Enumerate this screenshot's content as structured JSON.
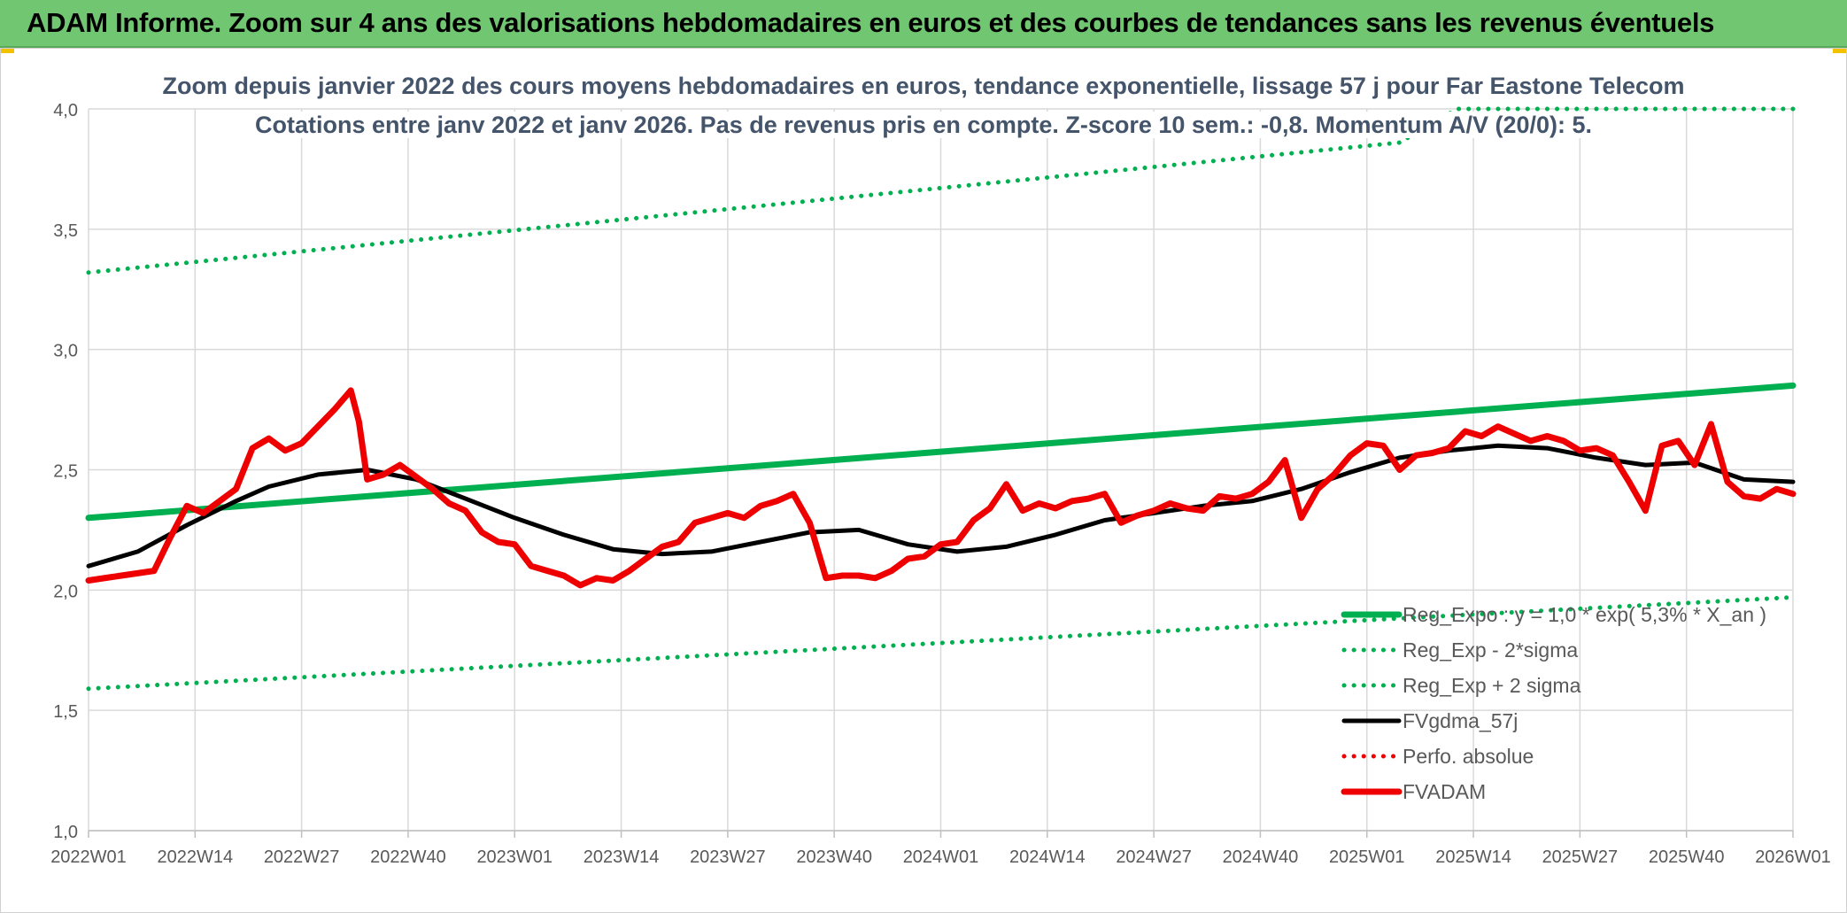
{
  "header": {
    "title": "ADAM Informe. Zoom sur 4 ans des valorisations hebdomadaires en euros et des courbes de tendances sans les revenus éventuels"
  },
  "colors": {
    "banner_bg": "#71c671",
    "regression": "#00b050",
    "gdma": "#000000",
    "fvadam": "#ee0000",
    "perfo": "#ee0000",
    "grid": "#d9d9d9",
    "axis_text": "#595959",
    "subtitle_text": "#44546a"
  },
  "chart_data": {
    "type": "line",
    "title": "Zoom depuis janvier 2022 des cours moyens hebdomadaires en euros, tendance exponentielle, lissage 57 j pour Far Eastone Telecom",
    "subtitle": "Cotations entre janv 2022 et janv 2026. Pas de revenus pris en compte. Z-score 10 sem.: -0,8. Momentum A/V (20/0): 5.",
    "xlabel": "",
    "ylabel": "",
    "ylim": [
      1.0,
      4.0
    ],
    "y_ticks": [
      "1,0",
      "1,5",
      "2,0",
      "2,5",
      "3,0",
      "3,5",
      "4,0"
    ],
    "x_ticks": [
      "2022W01",
      "2022W14",
      "2022W27",
      "2022W40",
      "2023W01",
      "2023W14",
      "2023W27",
      "2023W40",
      "2024W01",
      "2024W14",
      "2024W27",
      "2024W40",
      "2025W01",
      "2025W14",
      "2025W27",
      "2025W40",
      "2026W01"
    ],
    "grid": true,
    "legend_position": "bottom-right",
    "x_week_range": [
      0,
      208
    ],
    "series": [
      {
        "name": "Reg_Expo : y = 1,0 * exp( 5,3% * X_an )",
        "style": "solid-thick",
        "color": "#00b050",
        "x": [
          0,
          208
        ],
        "y": [
          2.3,
          2.85
        ]
      },
      {
        "name": "Reg_Exp - 2*sigma",
        "style": "dotted",
        "color": "#00b050",
        "x": [
          0,
          208
        ],
        "y": [
          1.59,
          1.97
        ]
      },
      {
        "name": "Reg_Exp + 2 sigma",
        "style": "dotted",
        "color": "#00b050",
        "x": [
          0,
          160,
          167,
          208
        ],
        "y": [
          3.32,
          3.86,
          4.0,
          4.0
        ]
      },
      {
        "name": "FVgdma_57j",
        "style": "solid",
        "color": "#000000",
        "x": [
          0,
          6,
          12,
          18,
          22,
          28,
          34,
          40,
          46,
          52,
          58,
          64,
          70,
          76,
          82,
          88,
          94,
          100,
          106,
          112,
          118,
          124,
          130,
          136,
          142,
          148,
          154,
          160,
          166,
          172,
          178,
          184,
          190,
          196,
          202,
          208
        ],
        "y": [
          2.1,
          2.16,
          2.27,
          2.37,
          2.43,
          2.48,
          2.5,
          2.46,
          2.38,
          2.3,
          2.23,
          2.17,
          2.15,
          2.16,
          2.2,
          2.24,
          2.25,
          2.19,
          2.16,
          2.18,
          2.23,
          2.29,
          2.32,
          2.35,
          2.37,
          2.42,
          2.49,
          2.55,
          2.58,
          2.6,
          2.59,
          2.55,
          2.52,
          2.53,
          2.46,
          2.45
        ]
      },
      {
        "name": "Perfo. absolue",
        "style": "dotted",
        "color": "#ee0000",
        "x": [],
        "y": []
      },
      {
        "name": "FVADAM",
        "style": "solid-thick",
        "color": "#ee0000",
        "x": [
          0,
          4,
          8,
          10,
          12,
          14,
          16,
          18,
          20,
          22,
          24,
          26,
          28,
          30,
          32,
          33,
          34,
          36,
          38,
          40,
          42,
          44,
          46,
          48,
          50,
          52,
          54,
          56,
          58,
          60,
          62,
          64,
          66,
          68,
          70,
          72,
          74,
          76,
          78,
          80,
          82,
          84,
          86,
          88,
          90,
          92,
          94,
          96,
          98,
          100,
          102,
          104,
          106,
          108,
          110,
          112,
          114,
          116,
          118,
          120,
          122,
          124,
          126,
          128,
          130,
          132,
          134,
          136,
          138,
          140,
          142,
          144,
          146,
          148,
          150,
          152,
          154,
          156,
          158,
          160,
          162,
          164,
          166,
          168,
          170,
          172,
          174,
          176,
          178,
          180,
          182,
          184,
          186,
          188,
          190,
          192,
          194,
          196,
          198,
          200,
          202,
          204,
          206,
          208
        ],
        "y": [
          2.04,
          2.06,
          2.08,
          2.22,
          2.35,
          2.32,
          2.37,
          2.42,
          2.59,
          2.63,
          2.58,
          2.61,
          2.68,
          2.75,
          2.83,
          2.7,
          2.46,
          2.48,
          2.52,
          2.47,
          2.42,
          2.36,
          2.33,
          2.24,
          2.2,
          2.19,
          2.1,
          2.08,
          2.06,
          2.02,
          2.05,
          2.04,
          2.08,
          2.13,
          2.18,
          2.2,
          2.28,
          2.3,
          2.32,
          2.3,
          2.35,
          2.37,
          2.4,
          2.28,
          2.05,
          2.06,
          2.06,
          2.05,
          2.08,
          2.13,
          2.14,
          2.19,
          2.2,
          2.29,
          2.34,
          2.44,
          2.33,
          2.36,
          2.34,
          2.37,
          2.38,
          2.4,
          2.28,
          2.31,
          2.33,
          2.36,
          2.34,
          2.33,
          2.39,
          2.38,
          2.4,
          2.45,
          2.54,
          2.3,
          2.42,
          2.48,
          2.56,
          2.61,
          2.6,
          2.5,
          2.56,
          2.57,
          2.59,
          2.66,
          2.64,
          2.68,
          2.65,
          2.62,
          2.64,
          2.62,
          2.58,
          2.59,
          2.56,
          2.45,
          2.33,
          2.6,
          2.62,
          2.52,
          2.69,
          2.45,
          2.39,
          2.38,
          2.42,
          2.4
        ]
      }
    ]
  }
}
